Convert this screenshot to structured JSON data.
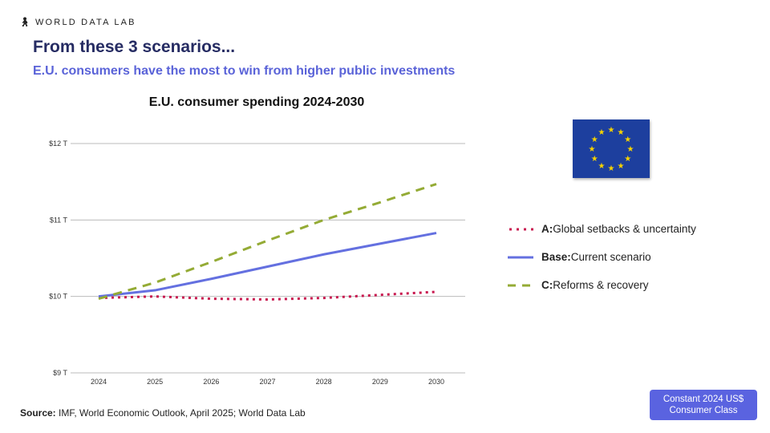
{
  "brand": {
    "name": "WORLD DATA LAB",
    "icon": "people-icon"
  },
  "header": {
    "title": "From these 3 scenarios...",
    "subtitle": "E.U. consumers have the most to win from higher public investments"
  },
  "flag": {
    "name": "eu-flag-icon",
    "colors": {
      "blue": "#1d3f9e",
      "star": "#f5d200"
    }
  },
  "legend": [
    {
      "bold": "A:",
      "text": " Global setbacks & uncertainty"
    },
    {
      "bold": "Base:",
      "text": " Current scenario"
    },
    {
      "bold": "C:",
      "text": " Reforms & recovery"
    }
  ],
  "source": {
    "bold": "Source:",
    "text": " IMF, World Economic Outlook, April 2025; World Data Lab"
  },
  "badge": {
    "line1": "Constant 2024 US$",
    "line2": "Consumer Class"
  },
  "chart_data": {
    "type": "line",
    "title": "E.U. consumer spending 2024-2030",
    "xlabel": "",
    "ylabel": "",
    "x": [
      "2024",
      "2025",
      "2026",
      "2027",
      "2028",
      "2029",
      "2030"
    ],
    "ylim": [
      9,
      12
    ],
    "yticks": [
      {
        "v": 9,
        "label": "$9 T"
      },
      {
        "v": 10,
        "label": "$10 T"
      },
      {
        "v": 11,
        "label": "$11 T"
      },
      {
        "v": 12,
        "label": "$12 T"
      }
    ],
    "grid": true,
    "legend_placement": "right",
    "series": [
      {
        "name": "A: Global setbacks & uncertainty",
        "color": "#c8184f",
        "style": "dotted",
        "values": [
          9.98,
          10.0,
          9.97,
          9.96,
          9.98,
          10.02,
          10.06
        ]
      },
      {
        "name": "Base: Current scenario",
        "color": "#6470e0",
        "style": "solid",
        "values": [
          10.0,
          10.08,
          10.23,
          10.39,
          10.55,
          10.69,
          10.83
        ]
      },
      {
        "name": "C: Reforms & recovery",
        "color": "#94ab35",
        "style": "dashed",
        "values": [
          9.97,
          10.18,
          10.45,
          10.73,
          11.0,
          11.23,
          11.47
        ]
      }
    ]
  }
}
